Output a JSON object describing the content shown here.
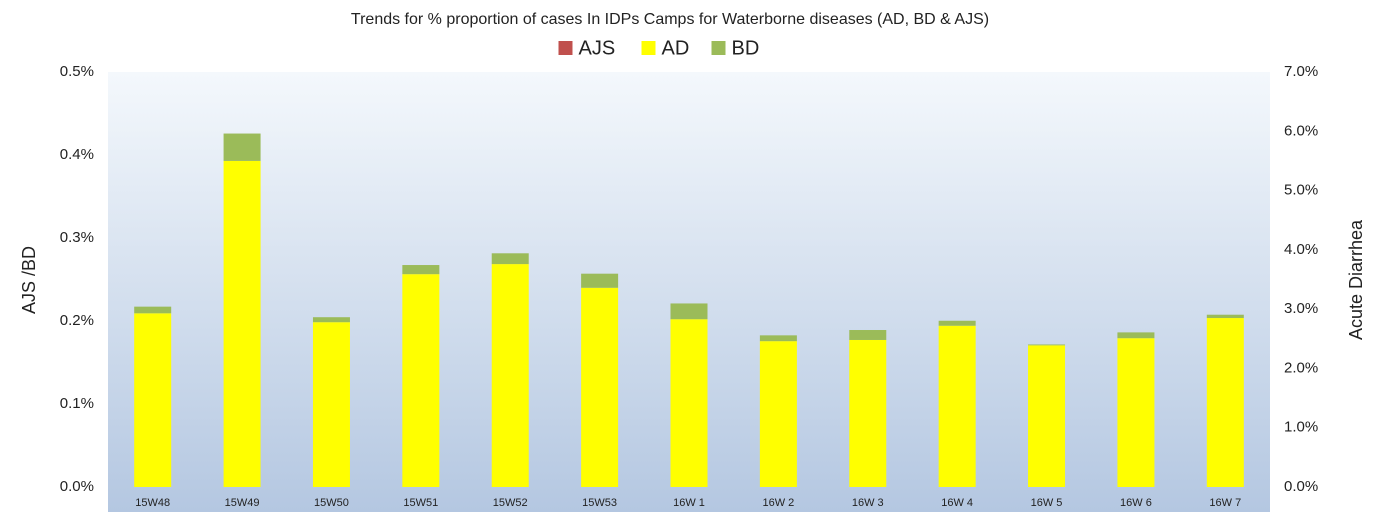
{
  "chart_data": {
    "type": "bar",
    "title": "Trends for % proportion of cases In IDPs Camps for Waterborne diseases (AD, BD & AJS)",
    "ylabel": "AJS /BD",
    "y2label": "Acute Diarrhea",
    "categories": [
      "15W48",
      "15W49",
      "15W50",
      "15W51",
      "15W52",
      "15W53",
      "16W 1",
      "16W 2",
      "16W 3",
      "16W 4",
      "16W 5",
      "16W 6",
      "16W 7"
    ],
    "series": [
      {
        "name": "AJS",
        "color": "#c0504d",
        "axis": "y",
        "values": [
          0,
          0,
          0,
          0,
          0,
          0,
          0,
          0,
          0,
          0,
          0,
          0,
          0
        ]
      },
      {
        "name": "AD",
        "color": "#ffff00",
        "axis": "y2",
        "values": [
          2.93,
          5.5,
          2.78,
          3.59,
          3.76,
          3.36,
          2.83,
          2.46,
          2.48,
          2.72,
          2.39,
          2.51,
          2.85
        ]
      },
      {
        "name": "BD",
        "color": "#9bbb59",
        "axis": "y",
        "values": [
          0.008,
          0.033,
          0.006,
          0.011,
          0.013,
          0.017,
          0.019,
          0.007,
          0.012,
          0.006,
          0.001,
          0.007,
          0.004
        ]
      }
    ],
    "stacked": true,
    "ylim": [
      0,
      0.5
    ],
    "yticks": [
      {
        "value": 0,
        "label": "0.0%"
      },
      {
        "value": 0.1,
        "label": "0.1%"
      },
      {
        "value": 0.2,
        "label": "0.2%"
      },
      {
        "value": 0.3,
        "label": "0.3%"
      },
      {
        "value": 0.4,
        "label": "0.4%"
      },
      {
        "value": 0.5,
        "label": "0.5%"
      }
    ],
    "y2lim": [
      0,
      7
    ],
    "y2ticks": [
      {
        "value": 0,
        "label": "0.0%"
      },
      {
        "value": 1,
        "label": "1.0%"
      },
      {
        "value": 2,
        "label": "2.0%"
      },
      {
        "value": 3,
        "label": "3.0%"
      },
      {
        "value": 4,
        "label": "4.0%"
      },
      {
        "value": 5,
        "label": "5.0%"
      },
      {
        "value": 6,
        "label": "6.0%"
      },
      {
        "value": 7,
        "label": "7.0%"
      }
    ],
    "legend": "top"
  }
}
